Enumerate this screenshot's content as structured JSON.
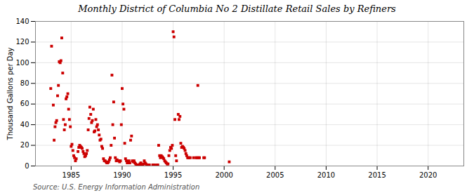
{
  "chart_data": {
    "type": "scatter",
    "title": "Monthly District of Columbia No 2 Distillate Retail Sales by Refiners",
    "ylabel": "Thousand Gallons per Day",
    "annotations": [
      "Source: U.S. Energy Information Administration"
    ],
    "color": "#cc0000",
    "marker": "square",
    "grid": true,
    "xlim": [
      1981.5,
      2023.5
    ],
    "ylim": [
      0,
      140
    ],
    "xticks": [
      1985,
      1990,
      1995,
      2000,
      2005,
      2010,
      2015,
      2020
    ],
    "yticks": [
      0,
      20,
      40,
      60,
      80,
      100,
      120,
      140
    ],
    "x": [
      1983.0,
      1983.08,
      1983.25,
      1983.33,
      1983.42,
      1983.5,
      1983.58,
      1983.67,
      1983.75,
      1983.83,
      1983.92,
      1984.0,
      1984.08,
      1984.17,
      1984.25,
      1984.33,
      1984.42,
      1984.5,
      1984.58,
      1984.67,
      1984.75,
      1984.83,
      1984.92,
      1985.0,
      1985.08,
      1985.17,
      1985.25,
      1985.33,
      1985.42,
      1985.5,
      1985.67,
      1985.75,
      1985.83,
      1985.92,
      1986.0,
      1986.08,
      1986.17,
      1986.25,
      1986.33,
      1986.42,
      1986.5,
      1986.58,
      1986.67,
      1986.75,
      1986.83,
      1986.92,
      1987.0,
      1987.08,
      1987.17,
      1987.25,
      1987.33,
      1987.42,
      1987.5,
      1987.58,
      1987.67,
      1987.75,
      1987.83,
      1987.92,
      1988.0,
      1988.08,
      1988.17,
      1988.25,
      1988.33,
      1988.42,
      1988.5,
      1988.58,
      1988.67,
      1988.75,
      1988.83,
      1988.92,
      1989.0,
      1989.08,
      1989.17,
      1989.25,
      1989.33,
      1989.42,
      1989.5,
      1989.67,
      1989.75,
      1989.83,
      1989.92,
      1990.0,
      1990.08,
      1990.17,
      1990.25,
      1990.33,
      1990.42,
      1990.5,
      1990.58,
      1990.67,
      1990.75,
      1990.83,
      1990.92,
      1991.0,
      1991.08,
      1991.17,
      1991.25,
      1991.33,
      1991.42,
      1991.5,
      1991.58,
      1991.67,
      1991.75,
      1991.83,
      1991.92,
      1992.0,
      1992.08,
      1992.17,
      1992.25,
      1992.33,
      1992.42,
      1992.58,
      1992.67,
      1993.0,
      1993.08,
      1993.17,
      1993.25,
      1993.33,
      1993.42,
      1993.5,
      1993.58,
      1993.67,
      1993.75,
      1993.83,
      1993.92,
      1994.0,
      1994.08,
      1994.17,
      1994.25,
      1994.33,
      1994.42,
      1994.5,
      1994.58,
      1994.67,
      1994.75,
      1994.83,
      1994.92,
      1995.0,
      1995.08,
      1995.17,
      1995.25,
      1995.33,
      1995.5,
      1995.58,
      1995.67,
      1995.75,
      1995.83,
      1995.92,
      1996.0,
      1996.08,
      1996.17,
      1996.25,
      1996.33,
      1996.42,
      1996.5,
      1996.58,
      1996.67,
      1997.0,
      1997.25,
      1997.33,
      1997.42,
      1997.5,
      1997.58,
      1998.0,
      1998.08,
      2000.5
    ],
    "values": [
      75,
      116,
      59,
      25,
      38,
      42,
      44,
      68,
      78,
      101,
      100,
      102,
      124,
      90,
      45,
      35,
      40,
      65,
      67,
      70,
      55,
      45,
      38,
      19,
      21,
      15,
      10,
      8,
      5,
      7,
      14,
      18,
      20,
      19,
      18,
      17,
      14,
      12,
      9,
      10,
      12,
      15,
      35,
      46,
      57,
      50,
      42,
      44,
      55,
      33,
      34,
      45,
      38,
      40,
      35,
      30,
      25,
      26,
      19,
      17,
      7,
      5,
      5,
      4,
      3,
      3,
      4,
      6,
      8,
      20,
      88,
      40,
      62,
      27,
      8,
      5,
      6,
      5,
      4,
      5,
      40,
      75,
      60,
      55,
      22,
      7,
      5,
      3,
      4,
      5,
      3,
      25,
      29,
      5,
      4,
      5,
      3,
      2,
      1,
      1,
      1,
      1,
      2,
      3,
      1,
      1,
      2,
      5,
      3,
      2,
      1,
      1,
      1,
      1,
      1,
      1,
      0,
      0,
      1,
      1,
      20,
      10,
      8,
      10,
      9,
      8,
      7,
      5,
      4,
      3,
      2,
      2,
      10,
      15,
      18,
      17,
      20,
      130,
      125,
      45,
      10,
      5,
      50,
      45,
      48,
      22,
      18,
      19,
      18,
      17,
      15,
      12,
      10,
      8,
      8,
      8,
      8,
      8,
      8,
      8,
      78,
      8,
      8,
      8,
      8,
      4
    ]
  }
}
